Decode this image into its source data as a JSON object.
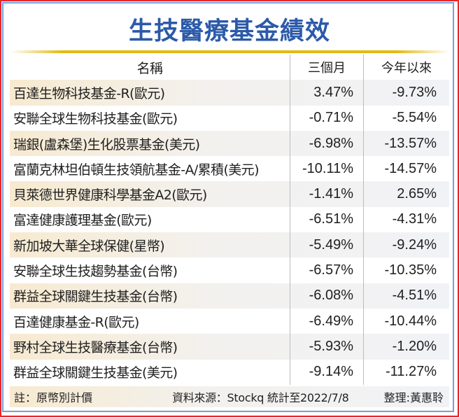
{
  "title": "生技醫療基金績效",
  "colors": {
    "title": "#2b5aa9",
    "accent_line": "#e4b90f",
    "outer_border": "#e8262a",
    "inner_border": "#7b9fd3",
    "stripe_left": "#f7ead0",
    "stripe_right": "#f1f2f6"
  },
  "table": {
    "headers": {
      "name": "名稱",
      "three_month": "三個月",
      "ytd": "今年以來"
    },
    "rows": [
      {
        "name": "百達生物科技基金-R(歐元)",
        "three_month": "3.47%",
        "ytd": "-9.73%"
      },
      {
        "name": "安聯全球生物科技基金(歐元)",
        "three_month": "-0.71%",
        "ytd": "-5.54%"
      },
      {
        "name": "瑞銀(盧森堡)生化股票基金(美元)",
        "three_month": "-6.98%",
        "ytd": "-13.57%"
      },
      {
        "name": "富蘭克林坦伯頓生技領航基金-A/累積(美元)",
        "three_month": "-10.11%",
        "ytd": "-14.57%"
      },
      {
        "name": "貝萊德世界健康科學基金A2(歐元)",
        "three_month": "-1.41%",
        "ytd": "2.65%"
      },
      {
        "name": "富達健康護理基金(歐元)",
        "three_month": "-6.51%",
        "ytd": "-4.31%"
      },
      {
        "name": "新加坡大華全球保健(星幣)",
        "three_month": "-5.49%",
        "ytd": "-9.24%"
      },
      {
        "name": "安聯全球生技趨勢基金(台幣)",
        "three_month": "-6.57%",
        "ytd": "-10.35%"
      },
      {
        "name": "群益全球關鍵生技基金(台幣)",
        "three_month": "-6.08%",
        "ytd": "-4.51%"
      },
      {
        "name": "百達健康基金-R(歐元)",
        "three_month": "-6.49%",
        "ytd": "-10.44%"
      },
      {
        "name": "野村全球生技醫療基金(台幣)",
        "three_month": "-5.93%",
        "ytd": "-1.20%"
      },
      {
        "name": "群益全球關鍵生技基金(美元)",
        "three_month": "-9.14%",
        "ytd": "-11.27%"
      }
    ]
  },
  "footer": {
    "note": "註：原幣別計價",
    "source": "資料來源：Stockq 統計至2022/7/8",
    "editor": "整理:黃惠聆"
  }
}
